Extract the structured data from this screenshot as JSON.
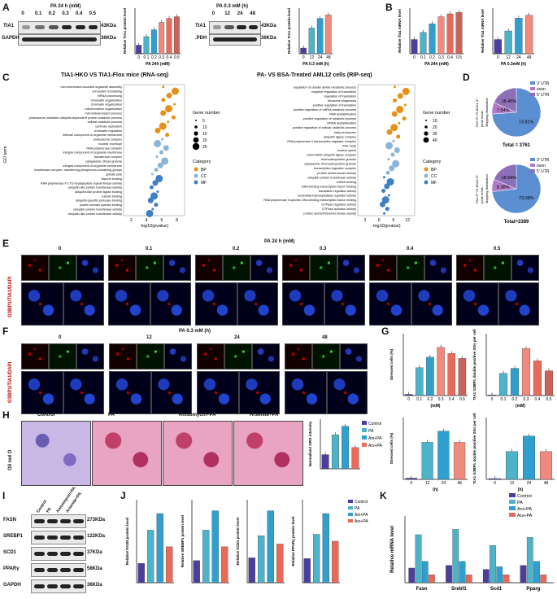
{
  "panels": {
    "A": "A",
    "B": "B",
    "C": "C",
    "D": "D",
    "E": "E",
    "F": "F",
    "G": "G",
    "H": "H",
    "I": "I",
    "J": "J",
    "K": "K"
  },
  "A": {
    "blot1_title": "PA 24 h (mM)",
    "blot1_lanes": [
      "0",
      "0.1",
      "0.2",
      "0.3",
      "0.4",
      "0.5"
    ],
    "blot2_title": "PA 0.3 mM (h)",
    "blot2_lanes": [
      "0",
      "12",
      "24",
      "48"
    ],
    "rows": [
      "TIA1",
      "GAPDH"
    ],
    "blot2_rows": [
      "TIA1",
      ".PDH"
    ],
    "sizes": [
      "43KDa",
      "36KDa"
    ],
    "chart1_ylabel": "Relative TIA1 protein level",
    "chart1_xlabel": "PA 24h (mM)",
    "chart2_ylabel": "Relative TIA1 protein level",
    "chart2_xlabel": "PA 0.3 mM (h)"
  },
  "B": {
    "chart1_ylabel": "Relative Tia1 mRNA level",
    "chart1_xlabel": "PA 24h (mM)",
    "chart2_ylabel": "Relative Tia1 mRNA level",
    "chart2_xlabel": "PA 0.3mM (h)"
  },
  "C": {
    "left_title": "TIA1-HKO VS TIA1-Flox mice (RNA-seq)",
    "right_title": "PA- VS BSA-Treated AML12 cells (RIP-seq)",
    "ylabel": "GO term",
    "xlabel": "-log10(pvalue)",
    "left_terms": [
      "non-membrane-bounded organelle assembly",
      "chromatin remodeling",
      "mRNA processing",
      "chromatin organization",
      "chromatin organization",
      "mitochondrion organization",
      "microtubule-based process",
      "proteasome-mediated ubiquitin-dependent protein catabolic process",
      "cellular catabolic process",
      "centriole replication",
      "chromatin regulation",
      "intrinsic component of organelle membrane",
      "proteasome complex",
      "nuclear envelope",
      "RNA polymerase complex",
      "integral component of organelle membrane",
      "transferase complex",
      "cytoplasmic stress granule",
      "integral component of organelle membrane",
      "transferase complex, transferring phosphorus-containing groups",
      "spindle pole",
      "histone binding",
      "RNA polymerase II CTD heptapeptide repeat kinase activity",
      "ubiquitin-like protein transferase activity",
      "ubiquitin-like protein ligase binding",
      "tubulin binding",
      "ubiquitin-specific protease binding",
      "protein domain specific binding",
      "ubiquitin-protein transferase activity",
      "ubiquitin-like protein transferase activity"
    ],
    "right_terms": [
      "regulation of cellular amide metabolic process",
      "negative regulation of translation",
      "regulation of translation",
      "ribosome biogenesis",
      "positive regulation of translation",
      "positive regulation of mRNA catabolic process",
      "RNA destabilization",
      "positive regulation of catabolic process",
      "mRNA destabilization",
      "positive regulation of cellular catabolic process",
      "early endosome",
      "ubiquitin ligase complex",
      "RNA polymerase II transcription regulator complex",
      "PML body",
      "nuclear speck",
      "cullin-RING ubiquitin ligase complex",
      "ribonucleoprotein granule",
      "cytoplasmic ribonucleoprotein granule",
      "transcription regulator complex",
      "protein serine kinase activity",
      "ubiquitin-protein transferase activity",
      "mRNA binding",
      "DNA-binding transcription factor binding",
      "translation regulator activity",
      "nucleotide-triphosphatase regulator activity",
      "RNA polymerase II-specific DNA-binding transcription factor binding",
      "GTPase regulator activity",
      "GTPase activator activity",
      "protein serine/threonine kinase activity"
    ],
    "legend_gene_title": "Gene number",
    "legend_gene_left": [
      "5",
      "10",
      "15",
      "20",
      "25"
    ],
    "legend_gene_right": [
      "10",
      "20",
      "30",
      "40"
    ],
    "legend_cat_title": "Category",
    "categories": [
      "BP",
      "CC",
      "MF"
    ],
    "cat_colors": [
      "#e6901a",
      "#8ab4d8",
      "#3f7fc4"
    ],
    "left_xticks": [
      "2",
      "4",
      "6",
      "8"
    ],
    "right_xticks": [
      "3",
      "6",
      "9",
      "12"
    ]
  },
  "D": {
    "legend": [
      "3' UTR",
      "exon",
      "5' UTR"
    ],
    "colors": [
      "#5b8fd1",
      "#b07cc6",
      "#8d6fb8"
    ],
    "pie1_side": "PA2 IP VS BSA1 IP",
    "pie1_side2": "Mapping distribution",
    "pie1_side3": "peak reads",
    "pie1_values": [
      73.91,
      7.64,
      18.45
    ],
    "pie1_labels": [
      "73.91%",
      "7.64%",
      "18.45%"
    ],
    "pie1_total": "Total = 3761",
    "pie2_side": "PA2 IP VS BSA2 IP",
    "pie2_side2": "Mapping distribution",
    "pie2_side3": "peak reads",
    "pie2_values": [
      73.08,
      8.38,
      18.54
    ],
    "pie2_labels": [
      "73.08%",
      "8.38%",
      "18.54%"
    ],
    "pie2_total": "Total=3389"
  },
  "E": {
    "title": "PA 24 h (mM)",
    "cols": [
      "0",
      "0.1",
      "0.2",
      "0.3",
      "0.4",
      "0.5"
    ],
    "side": "G3BP1/TIA1/DAPI"
  },
  "F": {
    "title": "PA 0.3 mM (h)",
    "cols": [
      "0",
      "12",
      "24",
      "48"
    ],
    "side": "G3BP1/TIA1/DAPI"
  },
  "G": {
    "c1_ylabel": "Stressed cells (%)",
    "c1_xlabel": "(mM)",
    "c1_ticks": [
      "0",
      "0.1",
      "0.2",
      "0.3",
      "0.4",
      "0.5"
    ],
    "c2_ylabel": "TIA1 G3BP1 double positive SGs per cell",
    "c2_xlabel": "(mM)",
    "c2_ticks": [
      "0",
      "0.1",
      "0.2",
      "0.3",
      "0.4",
      "0.5"
    ],
    "c3_ylabel": "Stressed cells (%)",
    "c3_xlabel": "(h)",
    "c3_ticks": [
      "0",
      "12",
      "24",
      "48"
    ],
    "c4_ylabel": "TIA1 G3BP1 double positive SGs per cell",
    "c4_xlabel": "(h)",
    "c4_ticks": [
      "0",
      "12",
      "24",
      "48"
    ]
  },
  "H": {
    "cols": [
      "Control",
      "PA",
      "Anisomycin+PA",
      "Arsenite+PA"
    ],
    "side": "Oil red O",
    "chart_ylabel": "Normalized ORO intensity",
    "legend": [
      "Control",
      "PA",
      "Ani+PA",
      "Ars+PA"
    ]
  },
  "I": {
    "lanes": [
      "Control",
      "PA",
      "Anisomycin+PA",
      "Arsenite+PA"
    ],
    "rows": [
      "FASN",
      "SREBP1",
      "SCD1",
      "PPARγ",
      "GAPDH"
    ],
    "sizes": [
      "273KDa",
      "122KDa",
      "37KDa",
      "58KDa",
      "36KDa"
    ]
  },
  "J": {
    "ylabels": [
      "Relative FASN protein level",
      "Relative SREBP1 protein level",
      "Relative SCD1 protein level",
      "Relative PPARγ protein level"
    ],
    "legend": [
      "Control",
      "PA",
      "Ani+PA",
      "Ars+PA"
    ]
  },
  "K": {
    "ylabel": "Relative mRNA level",
    "genes": [
      "Fasn",
      "Srebf1",
      "Scd1",
      "Pparg"
    ],
    "legend": [
      "Control",
      "PA",
      "Ani+PA",
      "Ars+PA"
    ]
  },
  "colors": {
    "g1": "#4a3f9c",
    "g2": "#4db3c9",
    "g3": "#2f9fd0",
    "g4": "#f08a7e",
    "g5": "#e96a5a",
    "g6": "#c9635a"
  },
  "chart_data": [
    {
      "type": "bar",
      "panel": "A-1",
      "categories": [
        "0",
        "0.1",
        "0.2",
        "0.3",
        "0.4",
        "0.5"
      ],
      "values": [
        0.15,
        0.3,
        0.42,
        0.55,
        0.62,
        0.65
      ],
      "ylim": [
        0,
        0.8
      ],
      "xlabel": "PA 24h (mM)",
      "ylabel": "Relative TIA1 protein level"
    },
    {
      "type": "bar",
      "panel": "A-2",
      "categories": [
        "0",
        "12",
        "24",
        "48"
      ],
      "values": [
        0.1,
        0.45,
        0.62,
        0.68
      ],
      "ylim": [
        0,
        0.8
      ],
      "xlabel": "PA 0.3 mM (h)",
      "ylabel": "Relative TIA1 protein level"
    },
    {
      "type": "bar",
      "panel": "B-1",
      "categories": [
        "0",
        "0.1",
        "0.2",
        "0.3",
        "0.4",
        "0.5"
      ],
      "values": [
        1.0,
        1.5,
        2.1,
        2.6,
        2.8,
        2.9
      ],
      "ylim": [
        0,
        3.2
      ],
      "xlabel": "PA 24h (mM)",
      "ylabel": "Relative Tia1 mRNA level"
    },
    {
      "type": "bar",
      "panel": "B-2",
      "categories": [
        "0",
        "12",
        "24",
        "48"
      ],
      "values": [
        1.0,
        1.6,
        2.5,
        2.7
      ],
      "ylim": [
        0,
        3.2
      ],
      "xlabel": "PA 0.3mM (h)",
      "ylabel": "Relative Tia1 mRNA level"
    },
    {
      "type": "pie",
      "panel": "D-1",
      "categories": [
        "3' UTR",
        "exon",
        "5' UTR"
      ],
      "values": [
        73.91,
        7.64,
        18.45
      ]
    },
    {
      "type": "pie",
      "panel": "D-2",
      "categories": [
        "3' UTR",
        "exon",
        "5' UTR"
      ],
      "values": [
        73.08,
        8.38,
        18.54
      ]
    },
    {
      "type": "bar",
      "panel": "G-1",
      "categories": [
        "0",
        "0.1",
        "0.2",
        "0.3",
        "0.4",
        "0.5"
      ],
      "values": [
        2,
        45,
        62,
        78,
        68,
        60
      ],
      "ylim": [
        0,
        100
      ],
      "ylabel": "Stressed cells (%)"
    },
    {
      "type": "bar",
      "panel": "G-2",
      "categories": [
        "0",
        "0.1",
        "0.2",
        "0.3",
        "0.4",
        "0.5"
      ],
      "values": [
        0.5,
        18,
        22,
        38,
        28,
        20
      ],
      "ylim": [
        0,
        50
      ],
      "ylabel": "TIA1 G3BP1 double positive SGs per cell"
    },
    {
      "type": "bar",
      "panel": "G-3",
      "categories": [
        "0",
        "12",
        "24",
        "48"
      ],
      "values": [
        2,
        60,
        78,
        60
      ],
      "ylim": [
        0,
        100
      ],
      "ylabel": "Stressed cells (%)"
    },
    {
      "type": "bar",
      "panel": "G-4",
      "categories": [
        "0",
        "12",
        "24",
        "48"
      ],
      "values": [
        0.5,
        18,
        28,
        18
      ],
      "ylim": [
        0,
        40
      ],
      "ylabel": "TIA1 G3BP1 double positive SGs per cell"
    },
    {
      "type": "bar",
      "panel": "H",
      "categories": [
        "Control",
        "PA",
        "Ani+PA",
        "Ars+PA"
      ],
      "values": [
        1.0,
        2.4,
        3.0,
        1.5
      ],
      "ylim": [
        0,
        3.5
      ],
      "ylabel": "Normalized ORO intensity"
    },
    {
      "type": "bar",
      "panel": "J-1",
      "categories": [
        "Control",
        "PA",
        "Ani+PA",
        "Ars+PA"
      ],
      "values": [
        0.35,
        0.95,
        1.25,
        0.65
      ],
      "ylim": [
        0,
        1.5
      ],
      "ylabel": "Relative FASN protein level"
    },
    {
      "type": "bar",
      "panel": "J-2",
      "categories": [
        "Control",
        "PA",
        "Ani+PA",
        "Ars+PA"
      ],
      "values": [
        0.4,
        0.95,
        1.3,
        0.65
      ],
      "ylim": [
        0,
        1.5
      ],
      "ylabel": "Relative SREBP1 protein level"
    },
    {
      "type": "bar",
      "panel": "J-3",
      "categories": [
        "Control",
        "PA",
        "Ani+PA",
        "Ars+PA"
      ],
      "values": [
        0.45,
        0.85,
        1.3,
        0.7
      ],
      "ylim": [
        0,
        1.5
      ],
      "ylabel": "Relative SCD1 protein level"
    },
    {
      "type": "bar",
      "panel": "J-4",
      "categories": [
        "Control",
        "PA",
        "Ani+PA",
        "Ars+PA"
      ],
      "values": [
        0.35,
        0.7,
        1.0,
        0.6
      ],
      "ylim": [
        0,
        1.2
      ],
      "ylabel": "Relative PPARγ protein level"
    },
    {
      "type": "bar",
      "panel": "K",
      "categories": [
        "Fasn",
        "Srebf1",
        "Scd1",
        "Pparg"
      ],
      "series": [
        {
          "name": "Control",
          "values": [
            5.5,
            6.5,
            5.0,
            6.5
          ]
        },
        {
          "name": "PA",
          "values": [
            18,
            20,
            14,
            17
          ]
        },
        {
          "name": "Ani+PA",
          "values": [
            8,
            8,
            6,
            8
          ]
        },
        {
          "name": "Ars+PA",
          "values": [
            3,
            3,
            3,
            3
          ]
        }
      ],
      "ylim": [
        0,
        25
      ],
      "ylabel": "Relative mRNA level"
    }
  ]
}
